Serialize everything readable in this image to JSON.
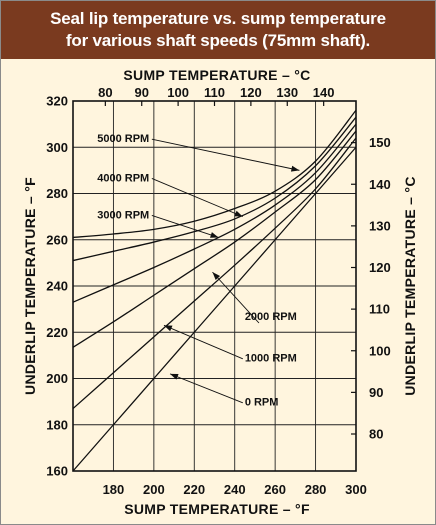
{
  "header": {
    "title_line1": "Seal lip temperature vs. sump temperature",
    "title_line2": "for various shaft speeds (75mm shaft)."
  },
  "colors": {
    "header_bg": "#7a3a1f",
    "page_bg": "#fff5de",
    "ink": "#111111"
  },
  "chart_data": {
    "type": "line",
    "title": "Seal lip temperature vs. sump temperature for various shaft speeds (75mm shaft).",
    "xlabel": "SUMP TEMPERATURE – °F",
    "ylabel": "UNDERLIP TEMPERATURE – °F",
    "x2label": "SUMP TEMPERATURE – °C",
    "y2label": "UNDERLIP TEMPERATURE – °C",
    "xlim": [
      160,
      300
    ],
    "ylim": [
      160,
      320
    ],
    "x_ticks": [
      180,
      200,
      220,
      240,
      260,
      280,
      300
    ],
    "y_ticks": [
      160,
      180,
      200,
      220,
      240,
      260,
      280,
      300,
      320
    ],
    "x2_ticks_celsius": [
      80,
      90,
      100,
      110,
      120,
      130,
      140
    ],
    "y2_ticks_celsius": [
      80,
      90,
      100,
      110,
      120,
      130,
      140,
      150
    ],
    "grid": true,
    "series": [
      {
        "name": "0 RPM",
        "label_xy": [
          245,
          190
        ],
        "x": [
          160,
          180,
          200,
          220,
          240,
          260,
          280,
          300
        ],
        "y": [
          160,
          180,
          200,
          220,
          240,
          260,
          280,
          300
        ]
      },
      {
        "name": "1000 RPM",
        "label_xy": [
          245,
          209
        ],
        "x": [
          160,
          180,
          200,
          220,
          240,
          260,
          280,
          300
        ],
        "y": [
          187,
          202.5,
          218,
          233.5,
          249,
          265,
          282,
          304
        ]
      },
      {
        "name": "2000 RPM",
        "label_xy": [
          245,
          227
        ],
        "x": [
          160,
          180,
          200,
          220,
          240,
          260,
          280,
          300
        ],
        "y": [
          213.5,
          224.5,
          236,
          247.5,
          259,
          272,
          286,
          307
        ]
      },
      {
        "name": "3000 RPM",
        "label_xy": [
          172,
          271
        ],
        "x": [
          160,
          180,
          200,
          220,
          240,
          260,
          280,
          300
        ],
        "y": [
          233,
          240.5,
          248,
          256,
          264.5,
          275,
          289,
          310
        ]
      },
      {
        "name": "4000 RPM",
        "label_xy": [
          172,
          287
        ],
        "x": [
          160,
          180,
          200,
          220,
          240,
          260,
          280,
          300
        ],
        "y": [
          251,
          255,
          259,
          263.5,
          269,
          278,
          292,
          313
        ]
      },
      {
        "name": "5000 RPM",
        "label_xy": [
          172,
          304
        ],
        "x": [
          160,
          180,
          200,
          220,
          240,
          260,
          280,
          300
        ],
        "y": [
          261,
          262.5,
          264.5,
          268,
          273.5,
          281,
          294,
          316
        ]
      }
    ],
    "leaders": [
      {
        "series": "0 RPM",
        "from": [
          244,
          189.5
        ],
        "to": [
          208,
          202
        ]
      },
      {
        "series": "1000 RPM",
        "from": [
          244,
          208.5
        ],
        "to": [
          205,
          223
        ]
      },
      {
        "series": "2000 RPM",
        "from": [
          252,
          224
        ],
        "to": [
          229,
          246
        ]
      },
      {
        "series": "3000 RPM",
        "from": [
          199,
          270.5
        ],
        "to": [
          232,
          261
        ]
      },
      {
        "series": "4000 RPM",
        "from": [
          199,
          286.5
        ],
        "to": [
          244,
          270
        ]
      },
      {
        "series": "5000 RPM",
        "from": [
          199,
          303.5
        ],
        "to": [
          272,
          290
        ]
      }
    ]
  }
}
